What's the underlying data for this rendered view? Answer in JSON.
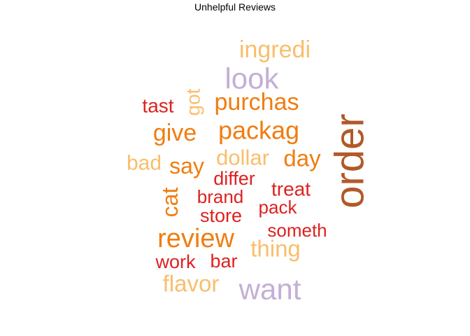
{
  "chart_data": {
    "type": "wordcloud",
    "title": "Unhelpful Reviews",
    "palette": {
      "light_orange": "#F9BE6C",
      "orange": "#F07D10",
      "brown": "#B15928",
      "red": "#DE2121",
      "lavender": "#C4AED6"
    },
    "words": [
      {
        "text": "order",
        "color": "brown",
        "rotated": true
      },
      {
        "text": "want",
        "color": "lavender",
        "rotated": false
      },
      {
        "text": "look",
        "color": "lavender",
        "rotated": false
      },
      {
        "text": "ingredi",
        "color": "light_orange",
        "rotated": false
      },
      {
        "text": "packag",
        "color": "orange",
        "rotated": false
      },
      {
        "text": "review",
        "color": "orange",
        "rotated": false
      },
      {
        "text": "purchas",
        "color": "orange",
        "rotated": false
      },
      {
        "text": "give",
        "color": "orange",
        "rotated": false
      },
      {
        "text": "day",
        "color": "orange",
        "rotated": false
      },
      {
        "text": "say",
        "color": "orange",
        "rotated": false
      },
      {
        "text": "cat",
        "color": "orange",
        "rotated": true
      },
      {
        "text": "dollar",
        "color": "light_orange",
        "rotated": false
      },
      {
        "text": "thing",
        "color": "light_orange",
        "rotated": false
      },
      {
        "text": "flavor",
        "color": "light_orange",
        "rotated": false
      },
      {
        "text": "bad",
        "color": "light_orange",
        "rotated": false
      },
      {
        "text": "got",
        "color": "light_orange",
        "rotated": true
      },
      {
        "text": "tast",
        "color": "red",
        "rotated": false
      },
      {
        "text": "differ",
        "color": "red",
        "rotated": false
      },
      {
        "text": "treat",
        "color": "red",
        "rotated": false
      },
      {
        "text": "brand",
        "color": "red",
        "rotated": false
      },
      {
        "text": "pack",
        "color": "red",
        "rotated": false
      },
      {
        "text": "store",
        "color": "red",
        "rotated": false
      },
      {
        "text": "someth",
        "color": "red",
        "rotated": false
      },
      {
        "text": "work",
        "color": "red",
        "rotated": false
      },
      {
        "text": "bar",
        "color": "red",
        "rotated": false
      }
    ]
  }
}
